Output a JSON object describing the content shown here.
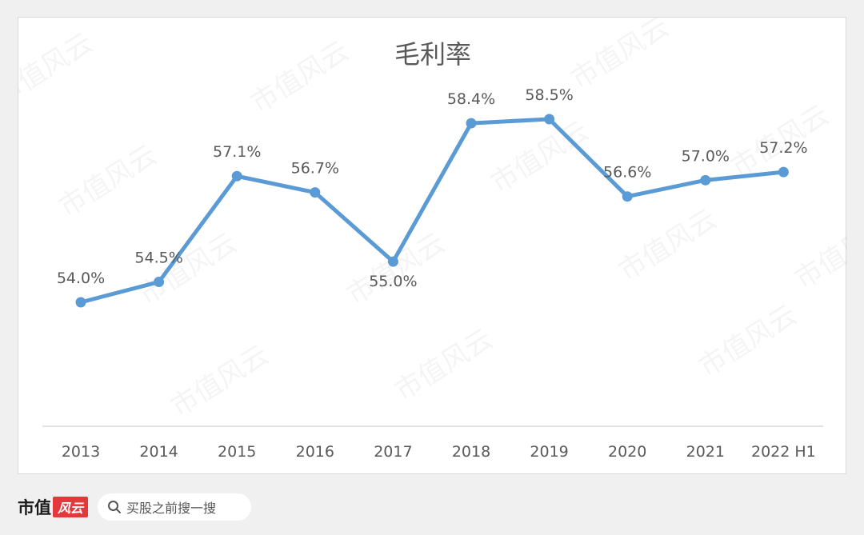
{
  "chart_data": {
    "type": "line",
    "title": "毛利率",
    "categories": [
      "2013",
      "2014",
      "2015",
      "2016",
      "2017",
      "2018",
      "2019",
      "2020",
      "2021",
      "2022 H1"
    ],
    "values": [
      54.0,
      54.5,
      57.1,
      56.7,
      55.0,
      58.4,
      58.5,
      56.6,
      57.0,
      57.2
    ],
    "data_labels": [
      "54.0%",
      "54.5%",
      "57.1%",
      "56.7%",
      "55.0%",
      "58.4%",
      "58.5%",
      "56.6%",
      "57.0%",
      "57.2%"
    ],
    "unit": "%",
    "ylim": [
      50,
      60
    ],
    "grid": false,
    "legend": false,
    "colors": {
      "line": "#5b9bd5",
      "axis": "#d9d9d9",
      "text": "#595959"
    }
  },
  "watermark": "市值风云",
  "footer": {
    "brand_text": "市值",
    "brand_mark": "风云",
    "search_label": "买股之前搜一搜"
  }
}
